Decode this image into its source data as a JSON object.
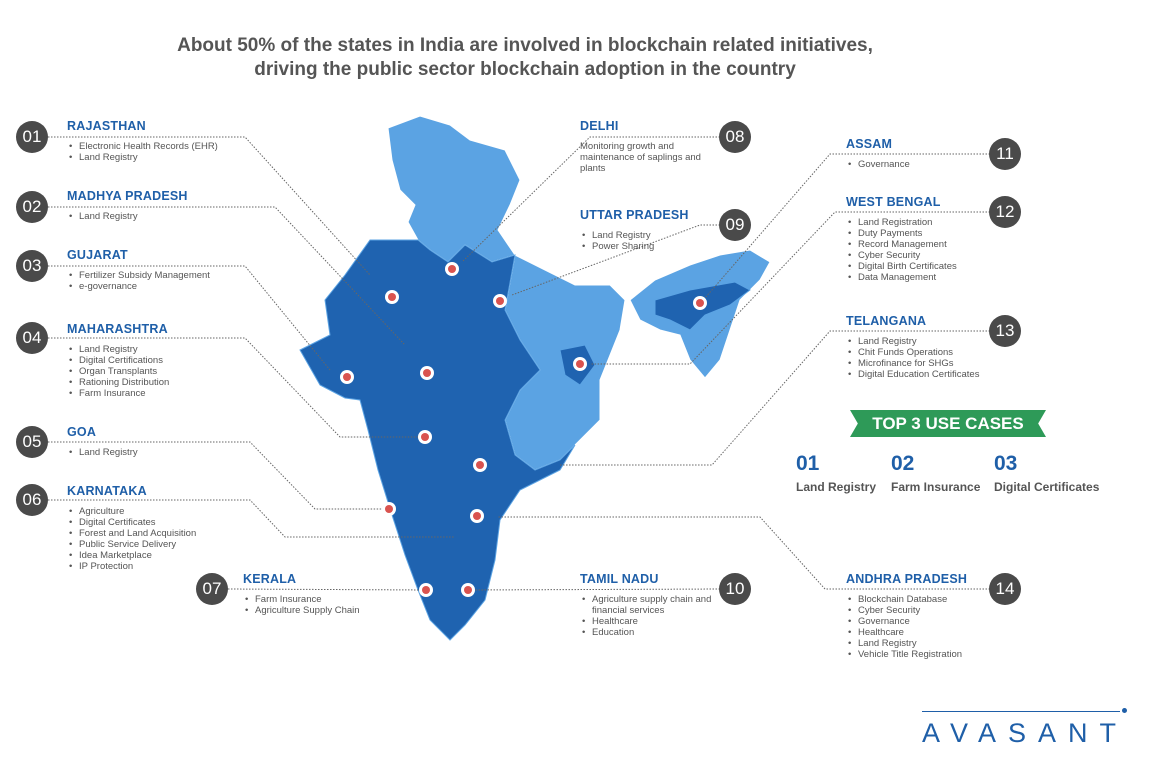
{
  "title": {
    "line1": "About 50% of the states in India are involved in blockchain related initiatives,",
    "line2": "driving the public sector blockchain adoption in the country"
  },
  "colors": {
    "dark_blue": "#1f63b0",
    "light_blue": "#5ba3e3",
    "heading": "#1f5fa8",
    "badge": "#4a4a4a",
    "banner": "#2e9a58"
  },
  "states": [
    {
      "num": "01",
      "name": "RAJASTHAN",
      "items": [
        "Electronic Health Records (EHR)",
        "Land Registry"
      ]
    },
    {
      "num": "02",
      "name": "MADHYA PRADESH",
      "items": [
        "Land Registry"
      ]
    },
    {
      "num": "03",
      "name": "GUJARAT",
      "items": [
        "Fertilizer Subsidy Management",
        "e-governance"
      ]
    },
    {
      "num": "04",
      "name": "MAHARASHTRA",
      "items": [
        "Land Registry",
        "Digital Certifications",
        "Organ Transplants",
        "Rationing Distribution",
        "Farm Insurance"
      ]
    },
    {
      "num": "05",
      "name": "GOA",
      "items": [
        "Land Registry"
      ]
    },
    {
      "num": "06",
      "name": "KARNATAKA",
      "items": [
        "Agriculture",
        "Digital Certificates",
        "Forest and Land Acquisition",
        "Public Service Delivery",
        "Idea Marketplace",
        "IP Protection"
      ]
    },
    {
      "num": "07",
      "name": "KERALA",
      "items": [
        "Farm Insurance",
        "Agriculture Supply Chain"
      ]
    },
    {
      "num": "08",
      "name": "DELHI",
      "description": "Monitoring growth and maintenance of saplings and plants"
    },
    {
      "num": "09",
      "name": "UTTAR PRADESH",
      "items": [
        "Land Registry",
        "Power Sharing"
      ]
    },
    {
      "num": "10",
      "name": "TAMIL NADU",
      "items": [
        "Agriculture supply chain and financial services",
        "Healthcare",
        "Education"
      ]
    },
    {
      "num": "11",
      "name": "ASSAM",
      "items": [
        "Governance"
      ]
    },
    {
      "num": "12",
      "name": "WEST BENGAL",
      "items": [
        "Land Registration",
        "Duty Payments",
        "Record Management",
        "Cyber Security",
        "Digital Birth Certificates",
        "Data Management"
      ]
    },
    {
      "num": "13",
      "name": "TELANGANA",
      "items": [
        "Land Registry",
        "Chit Funds Operations",
        "Microfinance for SHGs",
        "Digital Education Certificates"
      ]
    },
    {
      "num": "14",
      "name": "ANDHRA PRADESH",
      "items": [
        "Blockchain Database",
        "Cyber Security",
        "Governance",
        "Healthcare",
        "Land Registry",
        "Vehicle Title Registration"
      ]
    }
  ],
  "top_use_cases": {
    "title": "TOP 3 USE CASES",
    "items": [
      {
        "num": "01",
        "label": "Land Registry"
      },
      {
        "num": "02",
        "label": "Farm Insurance"
      },
      {
        "num": "03",
        "label": "Digital Certificates"
      }
    ]
  },
  "logo": "AVASANT"
}
